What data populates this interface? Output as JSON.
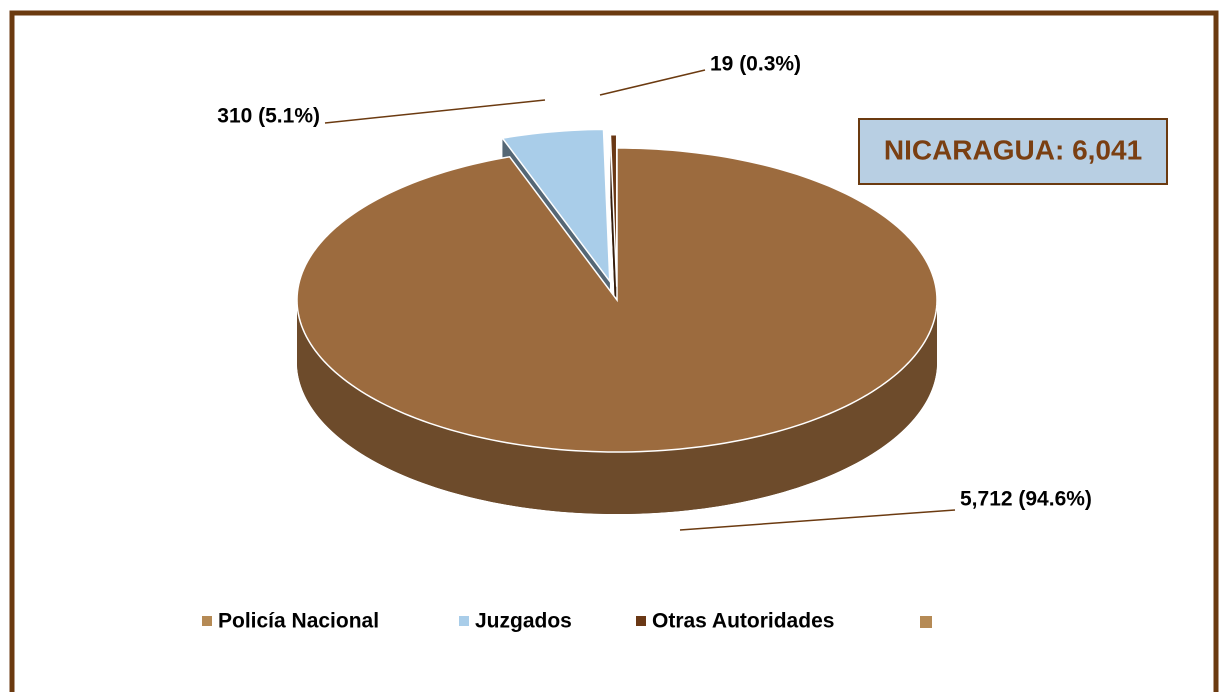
{
  "chart_data": {
    "type": "pie",
    "categories": [
      "Policía Nacional",
      "Juzgados",
      "Otras Autoridades"
    ],
    "values": [
      5712,
      310,
      19
    ],
    "value_labels": [
      "5,712 (94.6%)",
      "310 (5.1%)",
      "19 (0.3%)"
    ],
    "colors": [
      "#9c6b3e",
      "#a9cde9",
      "#6a3815"
    ],
    "annotation": "NICARAGUA: 6,041",
    "legend": "bottom"
  }
}
